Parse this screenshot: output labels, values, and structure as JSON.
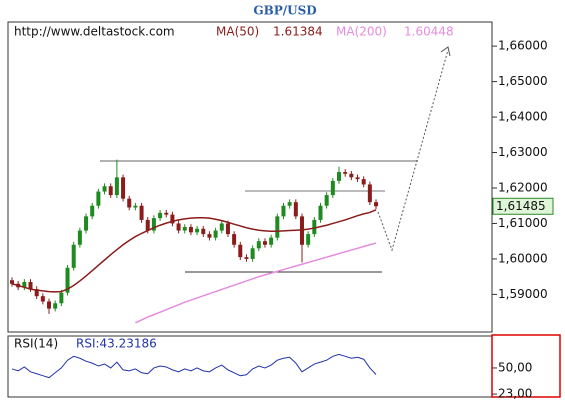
{
  "chart_data": {
    "type": "candlestick",
    "title": "GBP/USD",
    "source": "http://www.deltastock.com",
    "ylim": [
      1.5794,
      1.6668
    ],
    "yticks": [
      {
        "value": 1.59,
        "label": "1,59000"
      },
      {
        "value": 1.6,
        "label": "1,60000"
      },
      {
        "value": 1.61,
        "label": "1,61000"
      },
      {
        "value": 1.62,
        "label": "1,62000"
      },
      {
        "value": 1.63,
        "label": "1,63000"
      },
      {
        "value": 1.64,
        "label": "1,64000"
      },
      {
        "value": 1.65,
        "label": "1,65000"
      },
      {
        "value": 1.66,
        "label": "1,66000"
      }
    ],
    "last_price": {
      "value": 1.61485,
      "label": "1,61485"
    },
    "up_color": "#1f8a1f",
    "down_color": "#8b1c1c",
    "open": [
      1.594,
      1.593,
      1.592,
      1.5935,
      1.5915,
      1.5895,
      1.588,
      1.586,
      1.5875,
      1.5905,
      1.5975,
      1.604,
      1.608,
      1.612,
      1.615,
      1.619,
      1.6205,
      1.618,
      1.623,
      1.617,
      1.6145,
      1.615,
      1.611,
      1.608,
      1.6115,
      1.613,
      1.6125,
      1.61,
      1.608,
      1.609,
      1.6075,
      1.6085,
      1.607,
      1.606,
      1.608,
      1.61,
      1.607,
      1.604,
      1.6005,
      1.6,
      1.603,
      1.605,
      1.604,
      1.606,
      1.612,
      1.615,
      1.616,
      1.612,
      1.604,
      1.607,
      1.611,
      1.615,
      1.618,
      1.622,
      1.6245,
      1.624,
      1.623,
      1.6225,
      1.621,
      1.616
    ],
    "high": [
      1.5948,
      1.5938,
      1.5943,
      1.5943,
      1.5923,
      1.5903,
      1.5888,
      1.5883,
      1.5913,
      1.5983,
      1.6048,
      1.6088,
      1.6128,
      1.6158,
      1.6198,
      1.6213,
      1.6213,
      1.628,
      1.6238,
      1.6178,
      1.6158,
      1.6158,
      1.6118,
      1.6123,
      1.6138,
      1.6138,
      1.6133,
      1.6108,
      1.6098,
      1.6098,
      1.6093,
      1.6093,
      1.6078,
      1.6088,
      1.6108,
      1.6108,
      1.6078,
      1.6048,
      1.6013,
      1.6038,
      1.6058,
      1.6058,
      1.6068,
      1.6128,
      1.6158,
      1.6168,
      1.6168,
      1.6128,
      1.6078,
      1.6118,
      1.6158,
      1.6188,
      1.6228,
      1.626,
      1.6253,
      1.6248,
      1.6238,
      1.6233,
      1.6218,
      1.6168
    ],
    "low": [
      1.5922,
      1.5912,
      1.5912,
      1.5907,
      1.5887,
      1.5872,
      1.5845,
      1.5852,
      1.5867,
      1.5897,
      1.5967,
      1.6032,
      1.6072,
      1.6112,
      1.6142,
      1.6182,
      1.6172,
      1.6172,
      1.6162,
      1.6137,
      1.6137,
      1.6102,
      1.6072,
      1.6072,
      1.6107,
      1.6117,
      1.6092,
      1.6072,
      1.6072,
      1.6067,
      1.6067,
      1.6062,
      1.6052,
      1.6052,
      1.6072,
      1.6062,
      1.6032,
      1.5997,
      1.5992,
      1.5992,
      1.6022,
      1.6032,
      1.6032,
      1.6052,
      1.6112,
      1.6142,
      1.6112,
      1.599,
      1.6032,
      1.6062,
      1.6102,
      1.6142,
      1.6172,
      1.6212,
      1.6232,
      1.6222,
      1.6217,
      1.6202,
      1.6152,
      1.614
    ],
    "close": [
      1.593,
      1.592,
      1.5935,
      1.5915,
      1.5895,
      1.588,
      1.586,
      1.5875,
      1.5905,
      1.5975,
      1.604,
      1.608,
      1.612,
      1.615,
      1.619,
      1.6205,
      1.618,
      1.623,
      1.617,
      1.6145,
      1.615,
      1.611,
      1.608,
      1.6115,
      1.613,
      1.6125,
      1.61,
      1.608,
      1.609,
      1.6075,
      1.6085,
      1.607,
      1.606,
      1.608,
      1.61,
      1.607,
      1.604,
      1.6005,
      1.6,
      1.603,
      1.605,
      1.604,
      1.606,
      1.612,
      1.615,
      1.616,
      1.612,
      1.604,
      1.607,
      1.611,
      1.615,
      1.618,
      1.622,
      1.6245,
      1.624,
      1.623,
      1.6225,
      1.621,
      1.616,
      1.61485
    ],
    "overlays": [
      {
        "name": "MA(50)",
        "color": "#8b1c1c",
        "values": [
          1.593,
          1.5925,
          1.592,
          1.5915,
          1.5912,
          1.591,
          1.5908,
          1.5907,
          1.5908,
          1.5915,
          1.5925,
          1.5938,
          1.5952,
          1.5967,
          1.5982,
          1.5997,
          1.6012,
          1.6026,
          1.604,
          1.6052,
          1.6063,
          1.6072,
          1.608,
          1.6088,
          1.6095,
          1.6101,
          1.6106,
          1.611,
          1.6113,
          1.6115,
          1.6116,
          1.6116,
          1.6115,
          1.6112,
          1.6108,
          1.6103,
          1.6098,
          1.6093,
          1.6088,
          1.6084,
          1.6081,
          1.6079,
          1.6078,
          1.6078,
          1.6079,
          1.608,
          1.6081,
          1.6082,
          1.6084,
          1.6087,
          1.6091,
          1.6095,
          1.61,
          1.6105,
          1.611,
          1.6116,
          1.6122,
          1.6127,
          1.6131,
          1.61384
        ]
      },
      {
        "name": "MA(200)",
        "color": "#e58be0",
        "values": [
          null,
          null,
          null,
          null,
          null,
          null,
          null,
          null,
          null,
          null,
          null,
          null,
          null,
          null,
          null,
          null,
          null,
          null,
          null,
          null,
          1.582,
          1.5828,
          1.5836,
          1.5843,
          1.585,
          1.5857,
          1.5864,
          1.5871,
          1.5878,
          1.5884,
          1.589,
          1.5896,
          1.5902,
          1.5908,
          1.5914,
          1.592,
          1.5926,
          1.5932,
          1.5938,
          1.5944,
          1.595,
          1.5955,
          1.596,
          1.5965,
          1.597,
          1.5975,
          1.598,
          1.5985,
          1.599,
          1.5995,
          1.6,
          1.6005,
          1.601,
          1.6015,
          1.602,
          1.6025,
          1.603,
          1.6035,
          1.604,
          1.60448
        ]
      }
    ],
    "rsi": {
      "name": "RSI(14)",
      "value_label": "RSI:43.23186",
      "color": "#2233aa",
      "ylim": [
        20,
        83
      ],
      "yticks": [
        {
          "value": 50,
          "label": "50,00"
        },
        {
          "value": 23,
          "label": "23,00"
        }
      ],
      "values": [
        49,
        47,
        51,
        46,
        44,
        42,
        40,
        45,
        50,
        58,
        62,
        60,
        57,
        55,
        52,
        54,
        50,
        56,
        48,
        47,
        49,
        45,
        44,
        50,
        52,
        51,
        48,
        46,
        49,
        47,
        50,
        47,
        46,
        50,
        53,
        48,
        45,
        42,
        43,
        49,
        52,
        50,
        53,
        58,
        60,
        61,
        55,
        46,
        50,
        54,
        56,
        58,
        62,
        64,
        62,
        60,
        61,
        59,
        50,
        43.23186
      ]
    }
  }
}
